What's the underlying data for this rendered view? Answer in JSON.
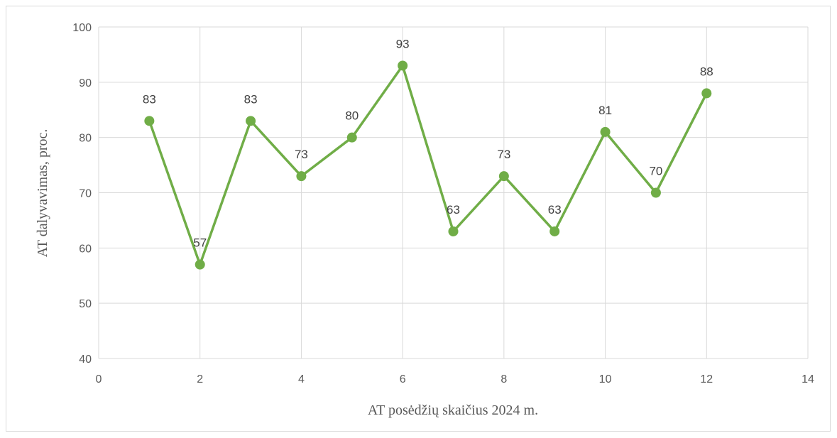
{
  "chart_data": {
    "type": "scatter",
    "title": "",
    "xlabel": "AT posėdžių skaičius 2024 m.",
    "ylabel": "AT dalyvavimas, proc.",
    "xlim": [
      0,
      14
    ],
    "ylim": [
      40,
      100
    ],
    "x_ticks": [
      0,
      2,
      4,
      6,
      8,
      10,
      12,
      14
    ],
    "y_ticks": [
      40,
      50,
      60,
      70,
      80,
      90,
      100
    ],
    "grid": true,
    "legend": "none",
    "series": [
      {
        "color": "#70ad47",
        "x": [
          1,
          2,
          3,
          4,
          5,
          6,
          7,
          8,
          9,
          10,
          11,
          12
        ],
        "y": [
          83,
          57,
          83,
          73,
          80,
          93,
          63,
          73,
          63,
          81,
          70,
          88
        ],
        "data_labels": [
          "83",
          "57",
          "83",
          "73",
          "80",
          "93",
          "63",
          "73",
          "63",
          "81",
          "70",
          "88"
        ]
      }
    ]
  }
}
